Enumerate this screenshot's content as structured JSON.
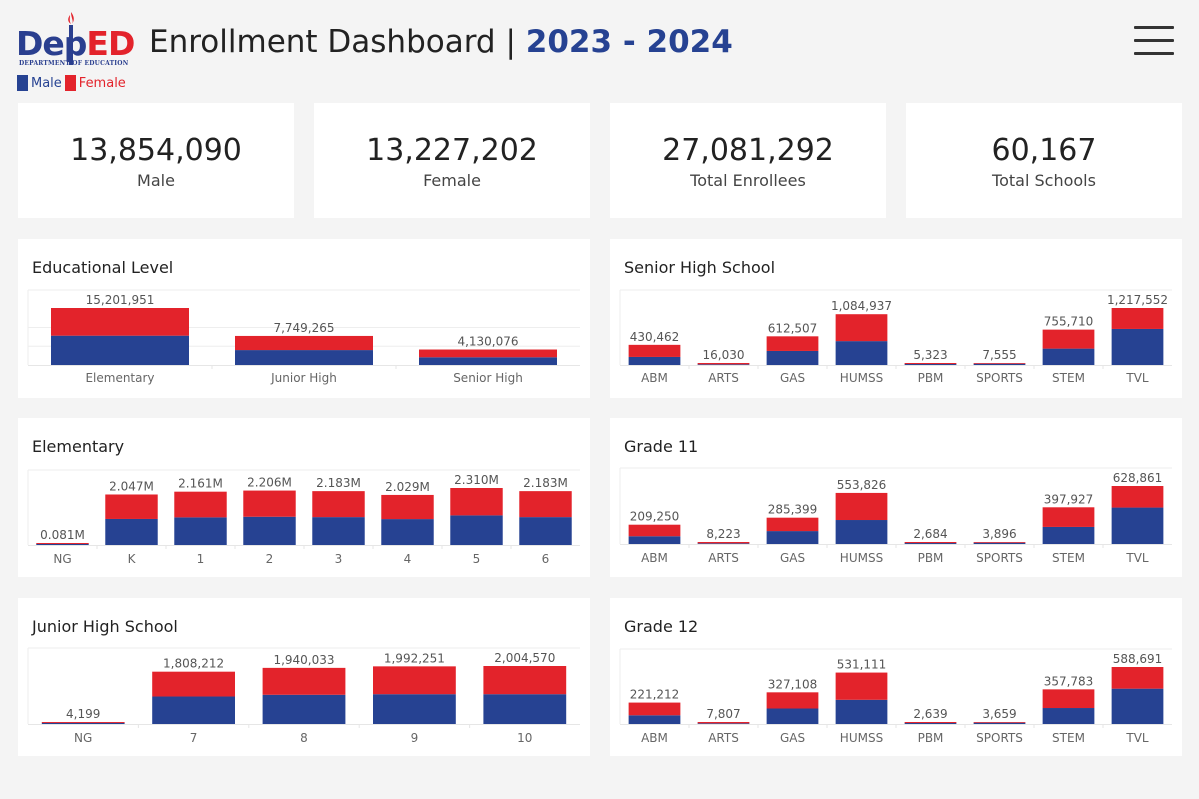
{
  "header": {
    "logo_text_dep": "Dep",
    "logo_text_ed": "ED",
    "logo_subtext": "DEPARTMENT OF EDUCATION",
    "title": "Enrollment Dashboard | ",
    "year": "2023 - 2024",
    "legend_male": "Male",
    "legend_female": "Female"
  },
  "colors": {
    "male": "#264292",
    "female": "#e3232b"
  },
  "kpis": [
    {
      "value": "13,854,090",
      "label": "Male"
    },
    {
      "value": "13,227,202",
      "label": "Female"
    },
    {
      "value": "27,081,292",
      "label": "Total Enrollees"
    },
    {
      "value": "60,167",
      "label": "Total Schools"
    }
  ],
  "chart_data": [
    {
      "id": "educational-level",
      "title": "Educational Level",
      "type": "bar",
      "stacked": true,
      "categories": [
        "Elementary",
        "Junior High",
        "Senior High"
      ],
      "data_labels": [
        "15,201,951",
        "7,749,265",
        "4,130,076"
      ],
      "series": [
        {
          "name": "Male",
          "values": [
            7820000,
            3980000,
            2060000
          ]
        },
        {
          "name": "Female",
          "values": [
            7381951,
            3769265,
            2070076
          ]
        }
      ],
      "gridlines": [
        5000000,
        10000000
      ]
    },
    {
      "id": "senior-high-school",
      "title": "Senior High School",
      "type": "bar",
      "stacked": true,
      "categories": [
        "ABM",
        "ARTS",
        "GAS",
        "HUMSS",
        "PBM",
        "SPORTS",
        "STEM",
        "TVL"
      ],
      "data_labels": [
        "430,462",
        "16,030",
        "612,507",
        "1,084,937",
        "5,323",
        "7,555",
        "755,710",
        "1,217,552"
      ],
      "series": [
        {
          "name": "Male",
          "values": [
            172000,
            5500,
            300000,
            510000,
            2600,
            4700,
            350000,
            770000
          ]
        },
        {
          "name": "Female",
          "values": [
            258462,
            10530,
            312507,
            574937,
            2723,
            2855,
            405710,
            447552
          ]
        }
      ]
    },
    {
      "id": "elementary",
      "title": "Elementary",
      "type": "bar",
      "stacked": true,
      "categories": [
        "NG",
        "K",
        "1",
        "2",
        "3",
        "4",
        "5",
        "6"
      ],
      "data_labels": [
        "0.081M",
        "2.047M",
        "2.161M",
        "2.206M",
        "2.183M",
        "2.029M",
        "2.310M",
        "2.183M"
      ],
      "series": [
        {
          "name": "Male",
          "values": [
            41000,
            1055000,
            1120000,
            1145000,
            1130000,
            1050000,
            1200000,
            1130000
          ]
        },
        {
          "name": "Female",
          "values": [
            40000,
            992000,
            1041000,
            1061000,
            1053000,
            979000,
            1110000,
            1053000
          ]
        }
      ]
    },
    {
      "id": "grade-11",
      "title": "Grade 11",
      "type": "bar",
      "stacked": true,
      "categories": [
        "ABM",
        "ARTS",
        "GAS",
        "HUMSS",
        "PBM",
        "SPORTS",
        "STEM",
        "TVL"
      ],
      "data_labels": [
        "209,250",
        "8,223",
        "285,399",
        "553,826",
        "2,684",
        "3,896",
        "397,927",
        "628,861"
      ],
      "series": [
        {
          "name": "Male",
          "values": [
            84000,
            2800,
            140000,
            260000,
            1300,
            2400,
            185000,
            395000
          ]
        },
        {
          "name": "Female",
          "values": [
            125250,
            5423,
            145399,
            293826,
            1384,
            1496,
            212927,
            233861
          ]
        }
      ]
    },
    {
      "id": "junior-high-school",
      "title": "Junior High School",
      "type": "bar",
      "stacked": true,
      "categories": [
        "NG",
        "7",
        "8",
        "9",
        "10"
      ],
      "data_labels": [
        "4,199",
        "1,808,212",
        "1,940,033",
        "1,992,251",
        "2,004,570"
      ],
      "series": [
        {
          "name": "Male",
          "values": [
            2200,
            950000,
            1010000,
            1030000,
            1030000
          ]
        },
        {
          "name": "Female",
          "values": [
            1999,
            858212,
            930033,
            962251,
            974570
          ]
        }
      ]
    },
    {
      "id": "grade-12",
      "title": "Grade 12",
      "type": "bar",
      "stacked": true,
      "categories": [
        "ABM",
        "ARTS",
        "GAS",
        "HUMSS",
        "PBM",
        "SPORTS",
        "STEM",
        "TVL"
      ],
      "data_labels": [
        "221,212",
        "7,807",
        "327,108",
        "531,111",
        "2,639",
        "3,659",
        "357,783",
        "588,691"
      ],
      "series": [
        {
          "name": "Male",
          "values": [
            90000,
            2700,
            160000,
            250000,
            1300,
            2300,
            165000,
            365000
          ]
        },
        {
          "name": "Female",
          "values": [
            131212,
            5107,
            167108,
            281111,
            1339,
            1359,
            192783,
            223691
          ]
        }
      ]
    }
  ]
}
